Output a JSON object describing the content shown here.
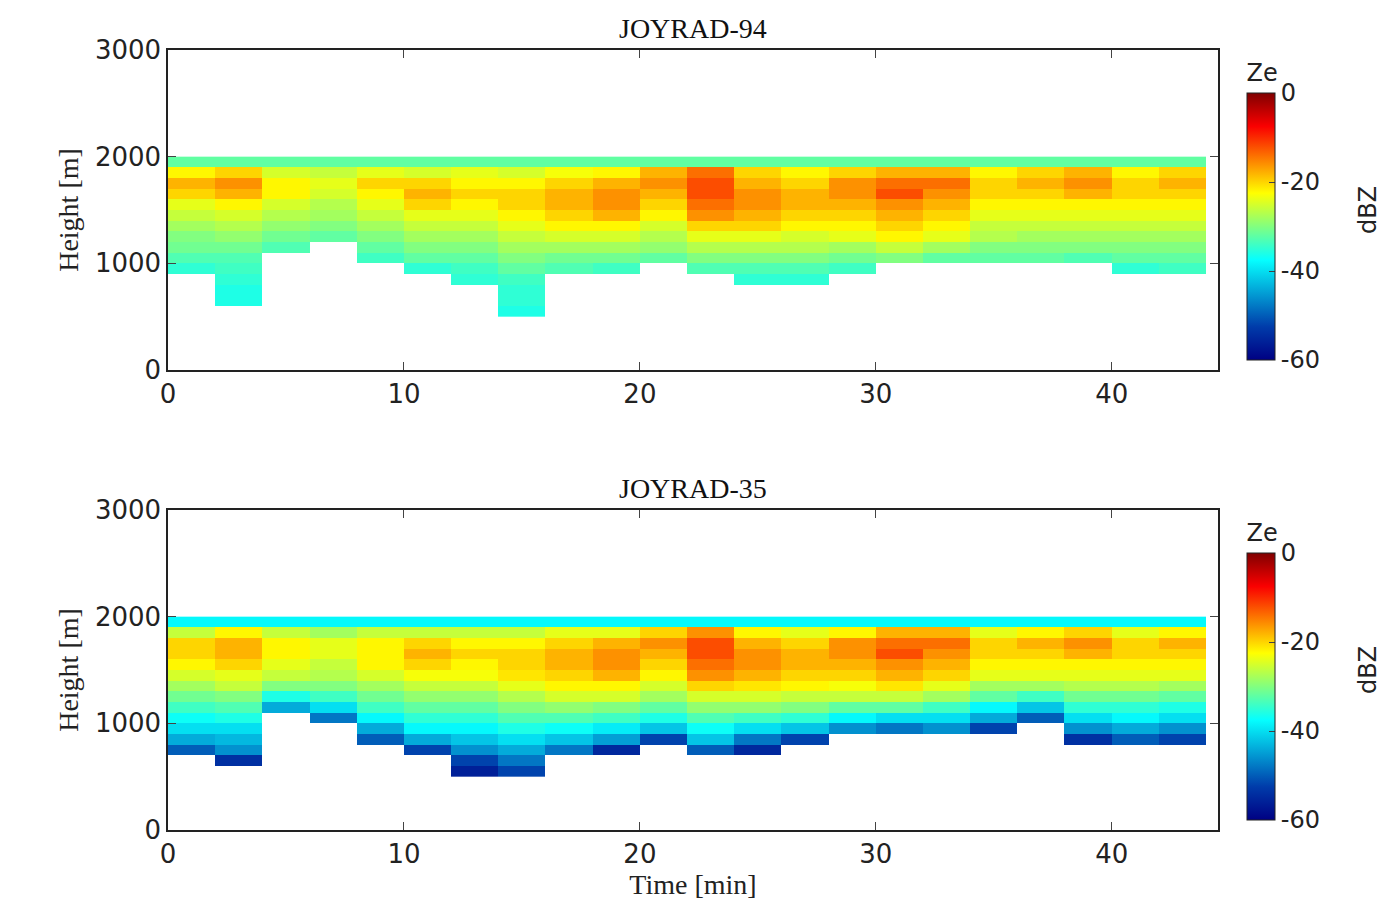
{
  "chart_data": [
    {
      "type": "heatmap",
      "title": "JOYRAD-94",
      "y_label": "Height [m]",
      "x": [
        1,
        3,
        5,
        7,
        9,
        11,
        13,
        15,
        17,
        19,
        21,
        23,
        25,
        27,
        29,
        31,
        33,
        35,
        37,
        39,
        41,
        43
      ],
      "y": [
        550,
        650,
        750,
        850,
        950,
        1050,
        1150,
        1250,
        1350,
        1450,
        1550,
        1650,
        1750,
        1850,
        1950
      ],
      "z": [
        [
          null,
          null,
          null,
          null,
          null,
          null,
          null,
          -36,
          null,
          null,
          null,
          null,
          null,
          null,
          null,
          null,
          null,
          null,
          null,
          null,
          null,
          null
        ],
        [
          null,
          -36,
          null,
          null,
          null,
          null,
          null,
          -35,
          null,
          null,
          null,
          null,
          null,
          null,
          null,
          null,
          null,
          null,
          null,
          null,
          null,
          null
        ],
        [
          null,
          -36,
          null,
          null,
          null,
          null,
          null,
          -35,
          null,
          null,
          null,
          null,
          null,
          null,
          null,
          null,
          null,
          null,
          null,
          null,
          null,
          null
        ],
        [
          null,
          -35,
          null,
          null,
          null,
          null,
          -35,
          -34,
          null,
          null,
          null,
          null,
          -35,
          -35,
          null,
          null,
          null,
          null,
          null,
          null,
          null,
          null
        ],
        [
          -35,
          -34,
          null,
          null,
          null,
          -35,
          -34,
          -32,
          -33,
          -34,
          null,
          -33,
          -33,
          -33,
          -34,
          null,
          null,
          null,
          null,
          null,
          -35,
          -34
        ],
        [
          -33,
          -33,
          null,
          null,
          -34,
          -32,
          -32,
          -30,
          -31,
          -31,
          -32,
          -30,
          -30,
          -30,
          -31,
          -30,
          -32,
          -32,
          -32,
          -33,
          -32,
          -32
        ],
        [
          -31,
          -31,
          -33,
          null,
          -32,
          -30,
          -30,
          -28,
          -28,
          -28,
          -29,
          -27,
          -27,
          -27,
          -28,
          -26,
          -28,
          -30,
          -30,
          -30,
          -30,
          -30
        ],
        [
          -30,
          -29,
          -31,
          -32,
          -30,
          -28,
          -28,
          -26,
          -25,
          -25,
          -27,
          -24,
          -24,
          -25,
          -24,
          -22,
          -24,
          -27,
          -28,
          -28,
          -28,
          -28
        ],
        [
          -28,
          -27,
          -29,
          -30,
          -28,
          -26,
          -26,
          -24,
          -22,
          -22,
          -25,
          -20,
          -20,
          -22,
          -22,
          -20,
          -22,
          -26,
          -26,
          -26,
          -26,
          -26
        ],
        [
          -26,
          -25,
          -27,
          -28,
          -26,
          -24,
          -24,
          -22,
          -20,
          -18,
          -22,
          -16,
          -18,
          -20,
          -20,
          -18,
          -20,
          -24,
          -24,
          -24,
          -24,
          -24
        ],
        [
          -24,
          -22,
          -25,
          -27,
          -24,
          -20,
          -22,
          -20,
          -18,
          -16,
          -20,
          -14,
          -16,
          -18,
          -18,
          -16,
          -18,
          -22,
          -22,
          -22,
          -22,
          -22
        ],
        [
          -20,
          -18,
          -22,
          -25,
          -22,
          -18,
          -20,
          -20,
          -18,
          -16,
          -18,
          -12,
          -16,
          -18,
          -16,
          -12,
          -16,
          -20,
          -20,
          -18,
          -20,
          -20
        ],
        [
          -18,
          -16,
          -22,
          -24,
          -20,
          -20,
          -22,
          -22,
          -20,
          -18,
          -16,
          -12,
          -18,
          -20,
          -16,
          -14,
          -14,
          -20,
          -18,
          -16,
          -20,
          -18
        ],
        [
          -22,
          -20,
          -25,
          -26,
          -24,
          -25,
          -24,
          -25,
          -23,
          -22,
          -18,
          -14,
          -20,
          -22,
          -20,
          -18,
          -18,
          -22,
          -20,
          -18,
          -22,
          -20
        ],
        [
          -32,
          -32,
          -32,
          -32,
          -32,
          -32,
          -32,
          -32,
          -32,
          -32,
          -32,
          -32,
          -32,
          -32,
          -32,
          -32,
          -32,
          -32,
          -32,
          -32,
          -32,
          -32
        ]
      ],
      "xlim": [
        0,
        44.5
      ],
      "ylim": [
        0,
        3000
      ],
      "xticks": [
        0,
        10,
        20,
        30,
        40
      ],
      "yticks": [
        0,
        1000,
        2000,
        3000
      ],
      "color": "Jet",
      "colorbar": {
        "title": "Ze",
        "label": "dBZ",
        "range": [
          -60,
          0
        ],
        "ticks": [
          0,
          -20,
          -40,
          -60
        ]
      }
    },
    {
      "type": "heatmap",
      "title": "JOYRAD-35",
      "x_label": "Time [min]",
      "y_label": "Height [m]",
      "x": [
        1,
        3,
        5,
        7,
        9,
        11,
        13,
        15,
        17,
        19,
        21,
        23,
        25,
        27,
        29,
        31,
        33,
        35,
        37,
        39,
        41,
        43
      ],
      "y": [
        550,
        650,
        750,
        850,
        950,
        1050,
        1150,
        1250,
        1350,
        1450,
        1550,
        1650,
        1750,
        1850,
        1950
      ],
      "z": [
        [
          null,
          null,
          null,
          null,
          null,
          null,
          -56,
          -52,
          null,
          null,
          null,
          null,
          null,
          null,
          null,
          null,
          null,
          null,
          null,
          null,
          null,
          null
        ],
        [
          null,
          -54,
          null,
          null,
          null,
          null,
          -52,
          -48,
          null,
          null,
          null,
          null,
          null,
          null,
          null,
          null,
          null,
          null,
          null,
          null,
          null,
          null
        ],
        [
          -50,
          -46,
          null,
          null,
          null,
          -52,
          -46,
          -44,
          -48,
          -55,
          null,
          -50,
          -55,
          null,
          null,
          null,
          null,
          null,
          null,
          null,
          null,
          null
        ],
        [
          -44,
          -43,
          null,
          null,
          -50,
          -44,
          -42,
          -40,
          -42,
          -45,
          -52,
          -42,
          -48,
          -52,
          null,
          null,
          null,
          null,
          null,
          -54,
          -50,
          -52
        ],
        [
          -40,
          -40,
          null,
          null,
          -44,
          -38,
          -38,
          -36,
          -37,
          -39,
          -42,
          -37,
          -40,
          -42,
          -46,
          -48,
          -46,
          -52,
          null,
          -46,
          -44,
          -46
        ],
        [
          -37,
          -36,
          null,
          -48,
          -38,
          -35,
          -35,
          -33,
          -33,
          -34,
          -36,
          -33,
          -34,
          -35,
          -38,
          -40,
          -40,
          -44,
          -50,
          -40,
          -38,
          -40
        ],
        [
          -34,
          -33,
          -44,
          -40,
          -34,
          -32,
          -32,
          -30,
          -29,
          -30,
          -32,
          -29,
          -29,
          -30,
          -32,
          -32,
          -34,
          -38,
          -42,
          -35,
          -35,
          -36
        ],
        [
          -31,
          -30,
          -36,
          -34,
          -31,
          -29,
          -29,
          -27,
          -25,
          -25,
          -28,
          -25,
          -25,
          -26,
          -26,
          -26,
          -28,
          -32,
          -34,
          -31,
          -31,
          -32
        ],
        [
          -28,
          -26,
          -30,
          -30,
          -28,
          -26,
          -26,
          -24,
          -22,
          -22,
          -25,
          -20,
          -21,
          -22,
          -23,
          -21,
          -24,
          -28,
          -28,
          -27,
          -27,
          -28
        ],
        [
          -25,
          -24,
          -26,
          -27,
          -25,
          -23,
          -23,
          -21,
          -20,
          -18,
          -22,
          -16,
          -18,
          -20,
          -20,
          -18,
          -20,
          -24,
          -24,
          -24,
          -24,
          -24
        ],
        [
          -22,
          -20,
          -24,
          -26,
          -22,
          -20,
          -22,
          -20,
          -18,
          -16,
          -20,
          -14,
          -16,
          -18,
          -18,
          -16,
          -18,
          -22,
          -22,
          -22,
          -22,
          -22
        ],
        [
          -20,
          -18,
          -22,
          -24,
          -22,
          -18,
          -20,
          -20,
          -18,
          -16,
          -18,
          -12,
          -16,
          -18,
          -16,
          -12,
          -16,
          -20,
          -20,
          -18,
          -20,
          -20
        ],
        [
          -20,
          -18,
          -22,
          -24,
          -22,
          -20,
          -22,
          -22,
          -20,
          -18,
          -16,
          -12,
          -18,
          -20,
          -16,
          -14,
          -14,
          -20,
          -18,
          -16,
          -20,
          -18
        ],
        [
          -26,
          -22,
          -26,
          -28,
          -26,
          -26,
          -26,
          -26,
          -24,
          -24,
          -20,
          -16,
          -22,
          -24,
          -22,
          -18,
          -18,
          -24,
          -22,
          -20,
          -24,
          -22
        ],
        [
          -38,
          -38,
          -38,
          -38,
          -38,
          -38,
          -38,
          -38,
          -38,
          -38,
          -38,
          -38,
          -38,
          -38,
          -38,
          -38,
          -38,
          -38,
          -38,
          -38,
          -38,
          -38
        ]
      ],
      "xlim": [
        0,
        44.5
      ],
      "ylim": [
        0,
        3000
      ],
      "xticks": [
        0,
        10,
        20,
        30,
        40
      ],
      "yticks": [
        0,
        1000,
        2000,
        3000
      ],
      "color": "Jet",
      "colorbar": {
        "title": "Ze",
        "label": "dBZ",
        "range": [
          -60,
          0
        ],
        "ticks": [
          0,
          -20,
          -40,
          -60
        ]
      }
    }
  ]
}
